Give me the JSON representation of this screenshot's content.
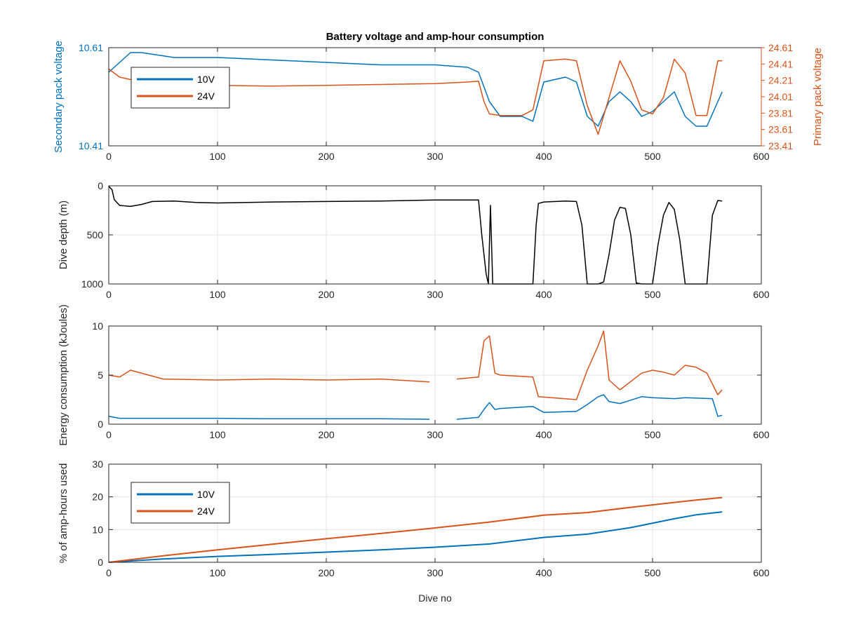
{
  "figure": {
    "title": "Battery voltage and amp-hour consumption",
    "xlabel": "Dive no"
  },
  "colors": {
    "blue": "#0072BD",
    "orange": "#D95319",
    "black": "#000000",
    "grid": "#e6e6e6",
    "axis": "#262626"
  },
  "chart_data": [
    {
      "type": "line",
      "title": "Battery voltage and amp-hour consumption",
      "xlabel": "",
      "ylabel": "Secondary pack voltage",
      "y2label": "Primary pack voltage",
      "xlim": [
        0,
        600
      ],
      "xticks": [
        0,
        100,
        200,
        300,
        400,
        500,
        600
      ],
      "ylim": [
        10.41,
        10.61
      ],
      "yticks": [
        10.41,
        10.61
      ],
      "y2lim": [
        23.41,
        24.61
      ],
      "y2ticks": [
        23.41,
        23.61,
        23.81,
        24.01,
        24.21,
        24.41,
        24.61
      ],
      "grid": true,
      "legend": {
        "placement": "top-left",
        "entries": [
          "10V",
          "24V"
        ]
      },
      "series": [
        {
          "name": "10V",
          "axis": "left",
          "color": "blue",
          "x": [
            0,
            10,
            20,
            30,
            60,
            100,
            150,
            200,
            250,
            300,
            330,
            340,
            345,
            350,
            360,
            380,
            390,
            400,
            420,
            430,
            440,
            450,
            460,
            470,
            480,
            490,
            500,
            510,
            520,
            530,
            540,
            550,
            560,
            564
          ],
          "y": [
            10.56,
            10.58,
            10.6,
            10.6,
            10.59,
            10.59,
            10.585,
            10.58,
            10.575,
            10.575,
            10.57,
            10.56,
            10.53,
            10.5,
            10.47,
            10.47,
            10.46,
            10.54,
            10.55,
            10.54,
            10.47,
            10.45,
            10.5,
            10.52,
            10.5,
            10.47,
            10.48,
            10.5,
            10.52,
            10.47,
            10.45,
            10.45,
            10.5,
            10.52
          ]
        },
        {
          "name": "24V",
          "axis": "right",
          "color": "orange",
          "x": [
            0,
            10,
            20,
            40,
            60,
            100,
            150,
            200,
            250,
            300,
            330,
            340,
            345,
            350,
            360,
            380,
            390,
            400,
            420,
            430,
            440,
            450,
            460,
            470,
            480,
            490,
            500,
            510,
            520,
            530,
            540,
            550,
            560,
            564
          ],
          "y": [
            24.35,
            24.25,
            24.22,
            24.15,
            24.16,
            24.15,
            24.14,
            24.15,
            24.16,
            24.17,
            24.19,
            24.2,
            23.95,
            23.8,
            23.78,
            23.78,
            23.85,
            24.45,
            24.47,
            24.45,
            23.9,
            23.55,
            24.0,
            24.45,
            24.2,
            23.85,
            23.8,
            24.0,
            24.47,
            24.3,
            23.78,
            23.78,
            24.45,
            24.45
          ]
        }
      ]
    },
    {
      "type": "line",
      "ylabel": "Dive depth (m)",
      "xlim": [
        0,
        600
      ],
      "xticks": [
        0,
        100,
        200,
        300,
        400,
        500,
        600
      ],
      "ylim": [
        0,
        1000
      ],
      "yticks": [
        0,
        500,
        1000
      ],
      "yreversed": true,
      "grid": true,
      "series": [
        {
          "name": "",
          "color": "black",
          "x": [
            0,
            3,
            5,
            10,
            20,
            30,
            40,
            60,
            80,
            100,
            150,
            200,
            250,
            300,
            340,
            343,
            347,
            349,
            351,
            353,
            355,
            360,
            390,
            393,
            395,
            400,
            420,
            430,
            435,
            440,
            450,
            455,
            460,
            465,
            470,
            475,
            480,
            485,
            490,
            500,
            505,
            510,
            515,
            520,
            525,
            530,
            545,
            550,
            555,
            560,
            564
          ],
          "y": [
            5,
            40,
            140,
            200,
            210,
            190,
            160,
            155,
            170,
            175,
            165,
            160,
            155,
            145,
            145,
            500,
            900,
            1000,
            200,
            1000,
            1000,
            1000,
            1000,
            400,
            180,
            165,
            155,
            160,
            400,
            1000,
            1000,
            980,
            700,
            350,
            220,
            230,
            500,
            990,
            1000,
            1000,
            600,
            300,
            170,
            240,
            550,
            1000,
            1000,
            1000,
            300,
            150,
            155
          ]
        }
      ]
    },
    {
      "type": "line",
      "ylabel": "Energy consumption (kJoules)",
      "xlim": [
        0,
        600
      ],
      "xticks": [
        0,
        100,
        200,
        300,
        400,
        500,
        600
      ],
      "ylim": [
        0,
        10
      ],
      "yticks": [
        0,
        5,
        10
      ],
      "grid": true,
      "series": [
        {
          "name": "24V",
          "color": "orange",
          "x": [
            0,
            10,
            20,
            50,
            100,
            150,
            200,
            250,
            295,
            300,
            320,
            340,
            345,
            350,
            355,
            360,
            390,
            395,
            430,
            440,
            450,
            455,
            460,
            470,
            490,
            500,
            510,
            520,
            530,
            540,
            550,
            560,
            564
          ],
          "y": [
            5,
            4.8,
            5.5,
            4.6,
            4.5,
            4.6,
            4.5,
            4.6,
            4.3,
            null,
            4.6,
            4.8,
            8.5,
            9,
            5.2,
            5.0,
            4.8,
            2.8,
            2.5,
            5.5,
            8.0,
            9.5,
            4.5,
            3.5,
            5.2,
            5.5,
            5.3,
            5.0,
            6.0,
            5.8,
            5.2,
            3.0,
            3.5
          ]
        },
        {
          "name": "10V",
          "color": "blue",
          "x": [
            0,
            10,
            20,
            50,
            100,
            150,
            200,
            250,
            295,
            300,
            320,
            340,
            345,
            350,
            355,
            360,
            390,
            400,
            430,
            440,
            450,
            455,
            460,
            470,
            490,
            500,
            520,
            530,
            555,
            560,
            564
          ],
          "y": [
            0.8,
            0.6,
            0.6,
            0.6,
            0.6,
            0.55,
            0.55,
            0.55,
            0.5,
            null,
            0.5,
            0.7,
            1.5,
            2.2,
            1.5,
            1.6,
            1.8,
            1.2,
            1.3,
            2.0,
            2.8,
            3.0,
            2.3,
            2.1,
            2.8,
            2.7,
            2.6,
            2.7,
            2.6,
            0.8,
            0.9
          ]
        }
      ]
    },
    {
      "type": "line",
      "ylabel": "% of amp-hours used",
      "xlabel": "Dive no",
      "xlim": [
        0,
        600
      ],
      "xticks": [
        0,
        100,
        200,
        300,
        400,
        500,
        600
      ],
      "ylim": [
        0,
        30
      ],
      "yticks": [
        0,
        10,
        20,
        30
      ],
      "grid": true,
      "legend": {
        "placement": "top-left",
        "entries": [
          "10V",
          "24V"
        ]
      },
      "series": [
        {
          "name": "10V",
          "color": "blue",
          "x": [
            0,
            50,
            100,
            150,
            200,
            250,
            300,
            350,
            400,
            440,
            480,
            520,
            540,
            564
          ],
          "y": [
            0,
            1.0,
            1.8,
            2.4,
            3.1,
            3.8,
            4.6,
            5.6,
            7.6,
            8.6,
            10.6,
            13.3,
            14.5,
            15.4
          ]
        },
        {
          "name": "24V",
          "color": "orange",
          "x": [
            0,
            50,
            100,
            150,
            200,
            250,
            300,
            350,
            400,
            440,
            480,
            520,
            540,
            564
          ],
          "y": [
            0,
            2.0,
            3.8,
            5.5,
            7.2,
            8.8,
            10.5,
            12.3,
            14.4,
            15.2,
            16.8,
            18.3,
            19.0,
            19.8
          ]
        }
      ]
    }
  ]
}
